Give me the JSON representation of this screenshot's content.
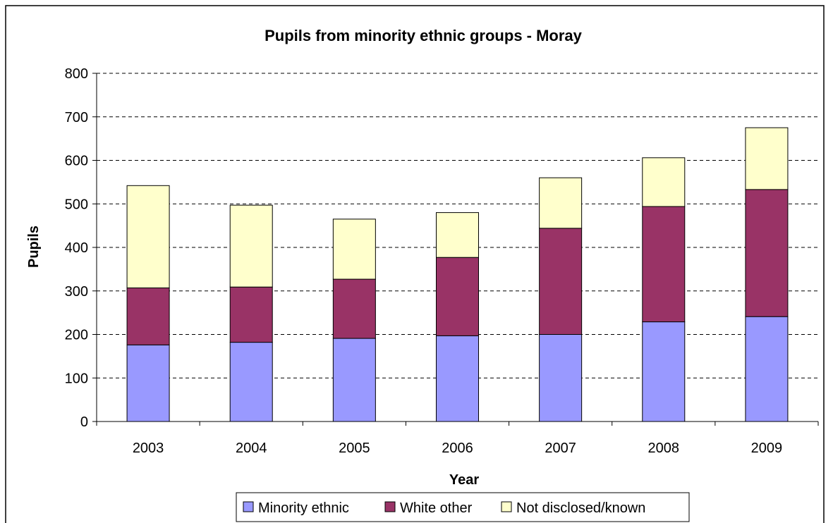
{
  "chart_data": {
    "type": "bar",
    "stacked": true,
    "title": "Pupils from minority ethnic groups - Moray",
    "xlabel": "Year",
    "ylabel": "Pupils",
    "ylim": [
      0,
      800
    ],
    "yticks": [
      "0",
      "100",
      "200",
      "300",
      "400",
      "500",
      "600",
      "700",
      "800"
    ],
    "grid": true,
    "legend_position": "bottom",
    "categories": [
      "2003",
      "2004",
      "2005",
      "2006",
      "2007",
      "2008",
      "2009"
    ],
    "series": [
      {
        "name": "Minority ethnic",
        "color": "#9999FF",
        "values": [
          176,
          182,
          191,
          197,
          200,
          229,
          241
        ]
      },
      {
        "name": "White other",
        "color": "#993366",
        "values": [
          131,
          127,
          136,
          180,
          244,
          265,
          292
        ]
      },
      {
        "name": "Not disclosed/known",
        "color": "#FFFFCC",
        "values": [
          235,
          188,
          138,
          103,
          116,
          112,
          142
        ]
      }
    ]
  }
}
